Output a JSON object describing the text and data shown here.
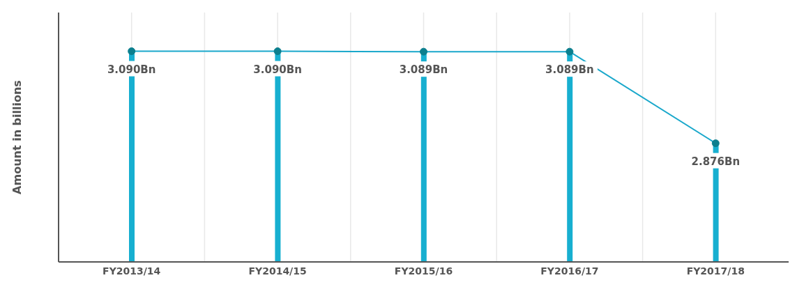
{
  "chart_data": {
    "type": "bar",
    "ylabel": "Amount in billions",
    "categories": [
      "FY2013/14",
      "FY2014/15",
      "FY2015/16",
      "FY2016/17",
      "FY2017/18"
    ],
    "series": [
      {
        "color": "#17afd0",
        "values": [
          3.09,
          3.09,
          3.089,
          3.089,
          2.876
        ]
      },
      {
        "type": "line",
        "color": "#1aa8cb",
        "values": [
          3.09,
          3.09,
          3.089,
          3.089,
          2.876
        ],
        "value_labels": [
          "3.090Bn",
          "3.090Bn",
          "3.089Bn",
          "3.089Bn",
          "2.876Bn"
        ]
      }
    ],
    "ylim": [
      2.6,
      3.18
    ],
    "grid": "x",
    "marker": "circle",
    "tick_labels": "x",
    "legend": false
  }
}
